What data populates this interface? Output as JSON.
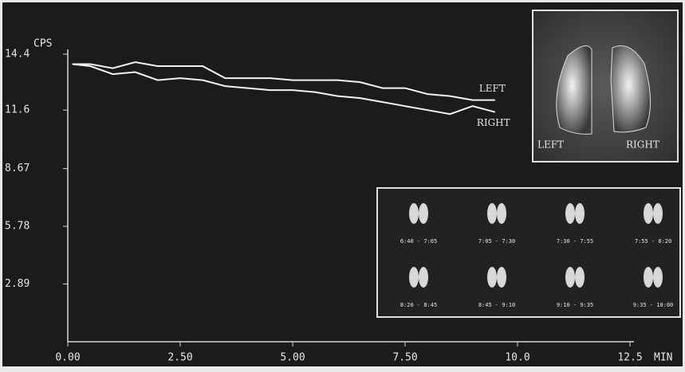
{
  "chart_data": {
    "type": "line",
    "y_label": "CPS",
    "x_label": "MIN",
    "x": [
      0.1,
      0.5,
      1.0,
      1.5,
      2.0,
      2.5,
      3.0,
      3.5,
      4.0,
      4.5,
      5.0,
      5.5,
      6.0,
      6.5,
      7.0,
      7.5,
      8.0,
      8.5,
      9.0,
      9.5
    ],
    "series": [
      {
        "name": "LEFT",
        "color": "#f2f2f2",
        "values": [
          13.9,
          13.9,
          13.7,
          14.0,
          13.8,
          13.8,
          13.8,
          13.2,
          13.2,
          13.2,
          13.1,
          13.1,
          13.1,
          13.0,
          12.7,
          12.7,
          12.4,
          12.3,
          12.1,
          12.1
        ]
      },
      {
        "name": "RIGHT",
        "color": "#f2f2f2",
        "values": [
          13.9,
          13.8,
          13.4,
          13.5,
          13.1,
          13.2,
          13.1,
          12.8,
          12.7,
          12.6,
          12.6,
          12.5,
          12.3,
          12.2,
          12.0,
          11.8,
          11.6,
          11.4,
          11.8,
          11.5
        ]
      }
    ],
    "xlim": [
      0,
      12.5
    ],
    "xticks": [
      {
        "value": 0,
        "label": "0.00"
      },
      {
        "value": 2.5,
        "label": "2.50"
      },
      {
        "value": 5,
        "label": "5.00"
      },
      {
        "value": 7.5,
        "label": "7.50"
      },
      {
        "value": 10,
        "label": "10.0"
      },
      12.5
    ],
    "ylim": [
      0,
      14.4
    ],
    "yticks": [
      2.89,
      5.78,
      8.67,
      11.6,
      14.4
    ],
    "inset_labels": [
      "LEFT",
      "RIGHT"
    ],
    "frame_labels": [
      "6:40 - 7:05",
      "7:05 - 7:30",
      "7:30 - 7:55",
      "7:55 - 8:20",
      "8:20 - 8:45",
      "8:45 - 9:10",
      "9:10 - 9:35",
      "9:35 - 10:00"
    ]
  }
}
